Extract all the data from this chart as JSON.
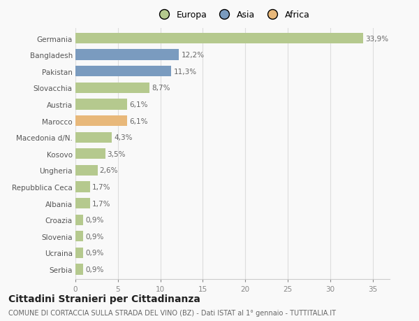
{
  "categories": [
    "Germania",
    "Bangladesh",
    "Pakistan",
    "Slovacchia",
    "Austria",
    "Marocco",
    "Macedonia d/N.",
    "Kosovo",
    "Ungheria",
    "Repubblica Ceca",
    "Albania",
    "Croazia",
    "Slovenia",
    "Ucraina",
    "Serbia"
  ],
  "values": [
    33.9,
    12.2,
    11.3,
    8.7,
    6.1,
    6.1,
    4.3,
    3.5,
    2.6,
    1.7,
    1.7,
    0.9,
    0.9,
    0.9,
    0.9
  ],
  "labels": [
    "33,9%",
    "12,2%",
    "11,3%",
    "8,7%",
    "6,1%",
    "6,1%",
    "4,3%",
    "3,5%",
    "2,6%",
    "1,7%",
    "1,7%",
    "0,9%",
    "0,9%",
    "0,9%",
    "0,9%"
  ],
  "colors": [
    "#b5c98e",
    "#7a9bbf",
    "#7a9bbf",
    "#b5c98e",
    "#b5c98e",
    "#e8b87a",
    "#b5c98e",
    "#b5c98e",
    "#b5c98e",
    "#b5c98e",
    "#b5c98e",
    "#b5c98e",
    "#b5c98e",
    "#b5c98e",
    "#b5c98e"
  ],
  "legend_labels": [
    "Europa",
    "Asia",
    "Africa"
  ],
  "legend_colors": [
    "#b5c98e",
    "#7a9bbf",
    "#e8b87a"
  ],
  "title": "Cittadini Stranieri per Cittadinanza",
  "subtitle": "COMUNE DI CORTACCIA SULLA STRADA DEL VINO (BZ) - Dati ISTAT al 1° gennaio - TUTTITALIA.IT",
  "xlim": [
    0,
    37
  ],
  "xticks": [
    0,
    5,
    10,
    15,
    20,
    25,
    30,
    35
  ],
  "background_color": "#f9f9f9",
  "bar_height": 0.65,
  "label_fontsize": 7.5,
  "tick_fontsize": 7.5,
  "title_fontsize": 10,
  "subtitle_fontsize": 7
}
